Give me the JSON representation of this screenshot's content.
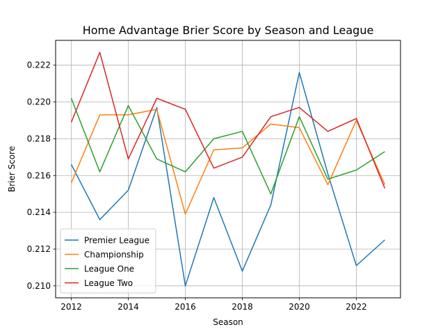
{
  "chart_data": {
    "type": "line",
    "title": "Home Advantage Brier Score by Season and League",
    "xlabel": "Season",
    "ylabel": "Brier Score",
    "x": [
      2012,
      2013,
      2014,
      2015,
      2016,
      2017,
      2018,
      2019,
      2020,
      2021,
      2022,
      2023
    ],
    "xlim": [
      2011.45,
      2023.55
    ],
    "ylim": [
      0.20935,
      0.22335
    ],
    "xticks": [
      2012,
      2014,
      2016,
      2018,
      2020,
      2022
    ],
    "yticks": [
      0.21,
      0.212,
      0.214,
      0.216,
      0.218,
      0.22,
      0.222
    ],
    "ytick_labels": [
      "0.210",
      "0.212",
      "0.214",
      "0.216",
      "0.218",
      "0.220",
      "0.222"
    ],
    "grid": true,
    "legend_position": "lower-left",
    "series": [
      {
        "name": "Premier League",
        "color": "#1f77b4",
        "values": [
          0.2166,
          0.2136,
          0.2152,
          0.2197,
          0.21,
          0.2148,
          0.2108,
          0.2144,
          0.2216,
          0.2161,
          0.2111,
          0.2125
        ]
      },
      {
        "name": "Championship",
        "color": "#ff7f0e",
        "values": [
          0.2156,
          0.2193,
          0.2193,
          0.2196,
          0.2139,
          0.2174,
          0.2175,
          0.2188,
          0.2186,
          0.2155,
          0.219,
          0.2155
        ]
      },
      {
        "name": "League One",
        "color": "#2ca02c",
        "values": [
          0.2202,
          0.2162,
          0.2198,
          0.2169,
          0.2162,
          0.218,
          0.2184,
          0.215,
          0.2192,
          0.2158,
          0.2163,
          0.2173
        ]
      },
      {
        "name": "League Two",
        "color": "#d62728",
        "values": [
          0.2189,
          0.2227,
          0.2169,
          0.2202,
          0.2196,
          0.2164,
          0.217,
          0.2192,
          0.2197,
          0.2184,
          0.2191,
          0.2153
        ]
      }
    ]
  }
}
